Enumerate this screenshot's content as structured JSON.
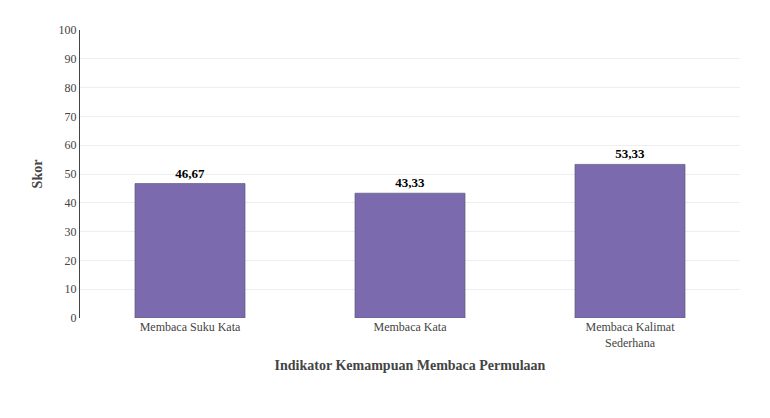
{
  "chart_data": {
    "type": "bar",
    "categories": [
      "Membaca Suku Kata",
      "Membaca Kata",
      "Membaca Kalimat\nSederhana"
    ],
    "values": [
      46.67,
      43.33,
      53.33
    ],
    "value_labels": [
      "46,67",
      "43,33",
      "53,33"
    ],
    "data_labels": true,
    "color": "#7B6BAE",
    "xlabel": "Indikator Kemampuan Membaca Permulaan",
    "ylabel": "Skor",
    "ylim": [
      0,
      100
    ],
    "yticks": [
      0,
      10,
      20,
      30,
      40,
      50,
      60,
      70,
      80,
      90,
      100
    ],
    "grid": true
  }
}
